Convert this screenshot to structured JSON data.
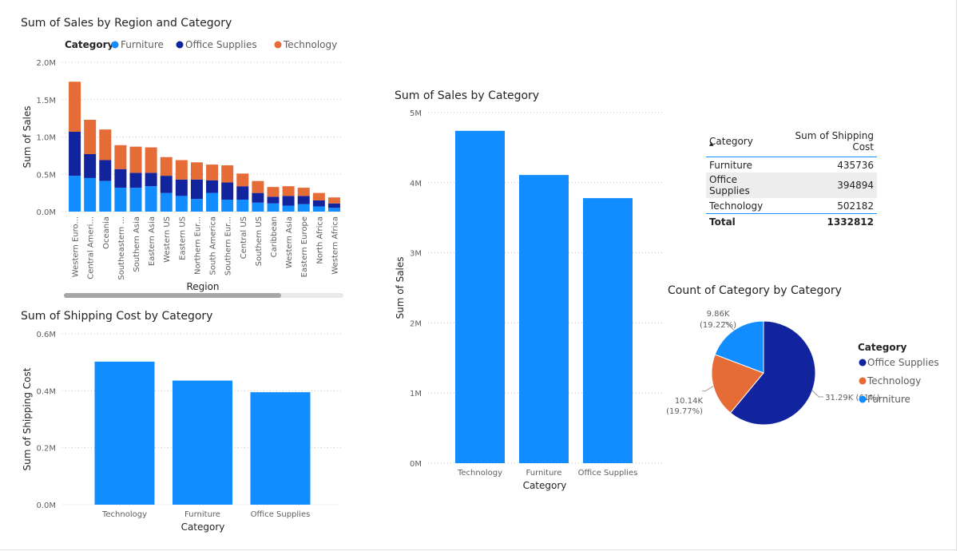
{
  "colors": {
    "furniture": "#118dff",
    "office_supplies": "#12239e",
    "technology": "#e66c37",
    "bar": "#118dff"
  },
  "chart_data": [
    {
      "id": "region",
      "type": "bar",
      "stacked": true,
      "title": "Sum of Sales by Region and Category",
      "xlabel": "Region",
      "ylabel": "Sum of Sales",
      "legend_title": "Category",
      "legend_position": "top-left",
      "ylim": [
        0,
        2000000
      ],
      "yticks": [
        {
          "value": 0,
          "label": "0.0M"
        },
        {
          "value": 500000,
          "label": "0.5M"
        },
        {
          "value": 1000000,
          "label": "1.0M"
        },
        {
          "value": 1500000,
          "label": "1.5M"
        },
        {
          "value": 2000000,
          "label": "2.0M"
        }
      ],
      "categories": [
        "Western Euro...",
        "Central Ameri...",
        "Oceania",
        "Southeastern ...",
        "Southern Asia",
        "Eastern Asia",
        "Western US",
        "Eastern US",
        "Northern Eur...",
        "South America",
        "Southern Eur...",
        "Central US",
        "Southern US",
        "Caribbean",
        "Western Asia",
        "Eastern Europe",
        "North Africa",
        "Western Africa"
      ],
      "series": [
        {
          "name": "Furniture",
          "color": "#118dff",
          "values": [
            480000,
            450000,
            410000,
            320000,
            320000,
            340000,
            250000,
            210000,
            170000,
            250000,
            160000,
            160000,
            120000,
            110000,
            80000,
            100000,
            70000,
            50000
          ]
        },
        {
          "name": "Office Supplies",
          "color": "#12239e",
          "values": [
            590000,
            320000,
            280000,
            250000,
            200000,
            180000,
            230000,
            220000,
            260000,
            170000,
            230000,
            180000,
            130000,
            90000,
            130000,
            110000,
            80000,
            60000
          ]
        },
        {
          "name": "Technology",
          "color": "#e66c37",
          "values": [
            670000,
            460000,
            410000,
            320000,
            350000,
            340000,
            250000,
            260000,
            230000,
            210000,
            230000,
            170000,
            160000,
            130000,
            130000,
            110000,
            100000,
            80000
          ]
        }
      ]
    },
    {
      "id": "shipping",
      "type": "bar",
      "title": "Sum of Shipping Cost by Category",
      "xlabel": "Category",
      "ylabel": "Sum of Shipping Cost",
      "ylim": [
        0,
        600000
      ],
      "yticks": [
        {
          "value": 0,
          "label": "0.0M"
        },
        {
          "value": 200000,
          "label": "0.2M"
        },
        {
          "value": 400000,
          "label": "0.4M"
        },
        {
          "value": 600000,
          "label": "0.6M"
        }
      ],
      "categories": [
        "Technology",
        "Furniture",
        "Office Supplies"
      ],
      "values": [
        502182,
        435736,
        394894
      ]
    },
    {
      "id": "sales",
      "type": "bar",
      "title": "Sum of Sales by Category",
      "xlabel": "Category",
      "ylabel": "Sum of Sales",
      "ylim": [
        0,
        5000000
      ],
      "yticks": [
        {
          "value": 0,
          "label": "0M"
        },
        {
          "value": 1000000,
          "label": "1M"
        },
        {
          "value": 2000000,
          "label": "2M"
        },
        {
          "value": 3000000,
          "label": "3M"
        },
        {
          "value": 4000000,
          "label": "4M"
        },
        {
          "value": 5000000,
          "label": "5M"
        }
      ],
      "categories": [
        "Technology",
        "Furniture",
        "Office Supplies"
      ],
      "values": [
        4740000,
        4110000,
        3780000
      ]
    },
    {
      "id": "pie",
      "type": "pie",
      "title": "Count of Category by Category",
      "legend_title": "Category",
      "legend_position": "right",
      "slices": [
        {
          "label": "Office Supplies",
          "value": 31290,
          "text": "31.29K (61%)",
          "color": "#12239e"
        },
        {
          "label": "Technology",
          "value": 10140,
          "text": [
            "10.14K",
            "(19.77%)"
          ],
          "color": "#e66c37"
        },
        {
          "label": "Furniture",
          "value": 9860,
          "text": [
            "9.86K",
            "(19.22%)"
          ],
          "color": "#118dff"
        }
      ]
    },
    {
      "id": "table",
      "type": "table",
      "columns": [
        "Category",
        "Sum of Shipping Cost"
      ],
      "rows": [
        [
          "Furniture",
          "435736"
        ],
        [
          "Office Supplies",
          "394894"
        ],
        [
          "Technology",
          "502182"
        ]
      ],
      "total": [
        "Total",
        "1332812"
      ]
    }
  ]
}
